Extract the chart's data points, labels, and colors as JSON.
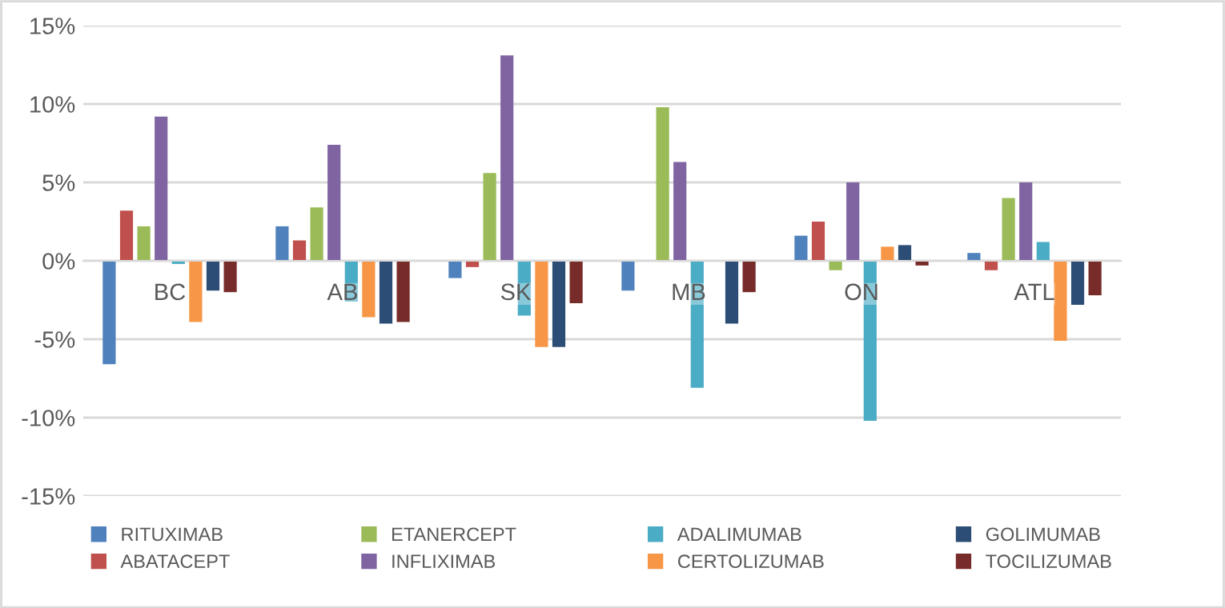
{
  "chart_data": {
    "type": "bar",
    "categories": [
      "BC",
      "AB",
      "SK",
      "MB",
      "ON",
      "ATL"
    ],
    "series": [
      {
        "name": "RITUXIMAB",
        "color": "#4f81bd",
        "values": [
          -6.6,
          2.2,
          -1.1,
          -1.9,
          1.6,
          0.5
        ]
      },
      {
        "name": "ABATACEPT",
        "color": "#c0504d",
        "values": [
          3.2,
          1.3,
          -0.4,
          null,
          2.5,
          -0.6
        ]
      },
      {
        "name": "ETANERCEPT",
        "color": "#9bbb59",
        "values": [
          2.2,
          3.4,
          5.6,
          9.8,
          -0.6,
          4.0
        ]
      },
      {
        "name": "INFLIXIMAB",
        "color": "#8064a2",
        "values": [
          9.2,
          7.4,
          13.1,
          6.3,
          5.0,
          5.0
        ]
      },
      {
        "name": "ADALIMUMAB",
        "color": "#4bacc6",
        "values": [
          -0.2,
          -2.6,
          -3.5,
          -8.1,
          -10.2,
          1.2
        ]
      },
      {
        "name": "CERTOLIZUMAB",
        "color": "#f79646",
        "values": [
          -3.9,
          -3.6,
          -5.5,
          null,
          0.9,
          -5.1
        ]
      },
      {
        "name": "GOLIMUMAB",
        "color": "#2c4d75",
        "values": [
          -1.9,
          -4.0,
          -5.5,
          -4.0,
          1.0,
          -2.8
        ]
      },
      {
        "name": "TOCILIZUMAB",
        "color": "#772c2a",
        "values": [
          -2.0,
          -3.9,
          -2.7,
          -2.0,
          -0.3,
          -2.2
        ]
      }
    ],
    "ylim": [
      -15,
      15
    ],
    "yticks": [
      {
        "value": -15,
        "label": "-15%"
      },
      {
        "value": -10,
        "label": "-10%"
      },
      {
        "value": -5,
        "label": "-5%"
      },
      {
        "value": 0,
        "label": "0%"
      },
      {
        "value": 5,
        "label": "5%"
      },
      {
        "value": 10,
        "label": "10%"
      },
      {
        "value": 15,
        "label": "15%"
      }
    ],
    "grid": "y",
    "legend": "bottom"
  }
}
